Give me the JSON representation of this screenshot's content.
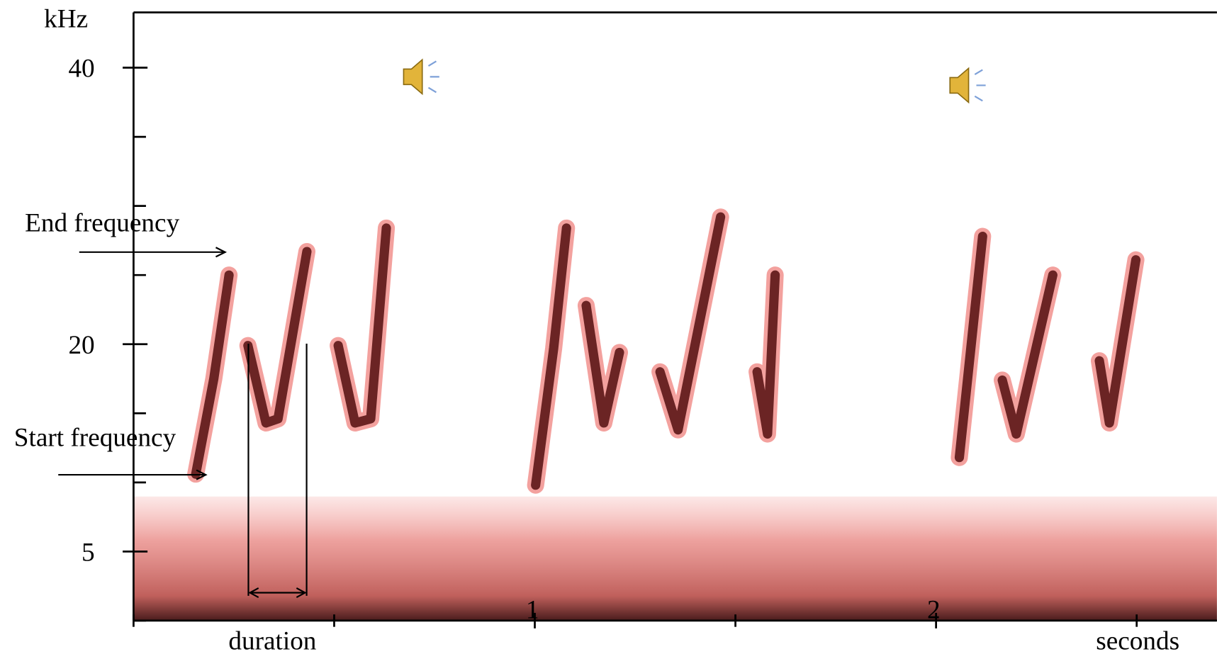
{
  "chart_data": {
    "type": "line",
    "y_unit_label": "kHz",
    "x_axis_label": "seconds",
    "annotations": {
      "end": "End frequency",
      "start": "Start frequency",
      "duration": "duration"
    },
    "xlim": [
      0,
      2.7
    ],
    "ylim": [
      0,
      44
    ],
    "xticks": [
      1,
      2
    ],
    "xminor_ticks": [
      0,
      0.5,
      1.5,
      2.5
    ],
    "yticks": [
      5,
      20,
      40
    ],
    "yminor_ticks": [
      0,
      10,
      15,
      25,
      30,
      35
    ],
    "series": [
      {
        "color": "#6b2424",
        "x": [
          0.155,
          0.2,
          0.238,
          null,
          0.285,
          0.33,
          0.36,
          0.432,
          null,
          0.51,
          0.552,
          0.591,
          0.63,
          null,
          1.002,
          1.047,
          1.079,
          null,
          1.128,
          1.172,
          1.211,
          null,
          1.312,
          1.357,
          1.463,
          null,
          1.554,
          1.58,
          1.599,
          null,
          2.058,
          2.116,
          null,
          2.165,
          2.2,
          2.291,
          null,
          2.407,
          2.432,
          2.498
        ],
        "values": [
          10.6,
          17.5,
          25.0,
          null,
          19.9,
          14.3,
          14.6,
          26.7,
          null,
          19.9,
          14.3,
          14.6,
          28.4,
          null,
          9.8,
          19.7,
          28.4,
          null,
          22.8,
          14.3,
          19.4,
          null,
          18.0,
          13.8,
          29.2,
          null,
          18.0,
          13.5,
          25.0,
          null,
          11.8,
          27.8,
          null,
          17.4,
          13.5,
          25.0,
          null,
          18.8,
          14.3,
          26.1
        ]
      }
    ]
  }
}
